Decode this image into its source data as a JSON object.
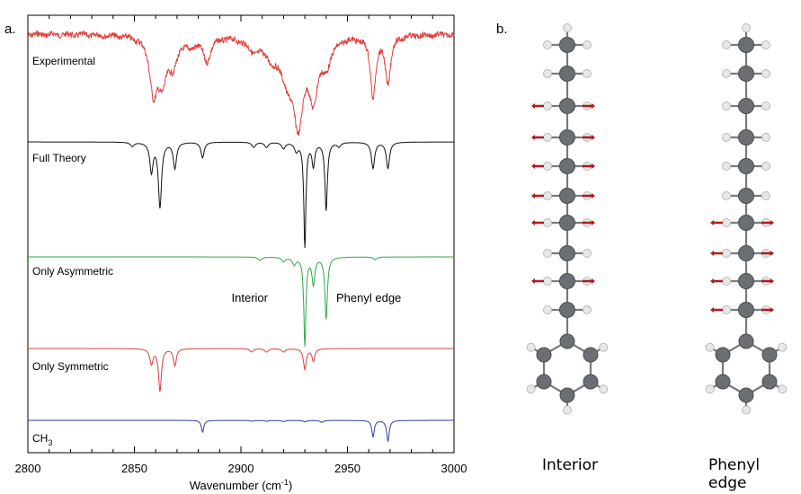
{
  "panel_a_label": "a.",
  "panel_b_label": "b.",
  "chart_data": {
    "type": "line",
    "title": "",
    "xlabel": "Wavenumber (cm⁻¹)",
    "xlabel_parts": {
      "text": "Wavenumber (cm",
      "sup": "-1",
      "close": ")"
    },
    "ylabel": "",
    "xlim": [
      2800,
      3000
    ],
    "xticks": [
      2800,
      2850,
      2900,
      2950,
      3000
    ],
    "grid": false,
    "legend": "none",
    "traces": [
      {
        "label": "Experimental",
        "color": "#e0403c",
        "noise": true,
        "peaks": [
          [
            2859,
            0.55,
            2.2
          ],
          [
            2863,
            0.4,
            2.4
          ],
          [
            2868,
            0.28,
            2.4
          ],
          [
            2876,
            0.08,
            3
          ],
          [
            2884,
            0.25,
            2.2
          ],
          [
            2906,
            0.12,
            4
          ],
          [
            2915,
            0.18,
            4
          ],
          [
            2922,
            0.35,
            3.5
          ],
          [
            2927,
            0.8,
            2.8
          ],
          [
            2934,
            0.55,
            2.5
          ],
          [
            2940,
            0.25,
            3
          ],
          [
            2962,
            0.62,
            1.5
          ],
          [
            2969,
            0.48,
            1.5
          ]
        ]
      },
      {
        "label": "Full Theory",
        "color": "#111111",
        "noise": false,
        "peaks": [
          [
            2849,
            0.04,
            1
          ],
          [
            2858,
            0.28,
            0.9
          ],
          [
            2862,
            0.62,
            0.9
          ],
          [
            2869,
            0.25,
            0.9
          ],
          [
            2882,
            0.15,
            0.9
          ],
          [
            2906,
            0.05,
            1
          ],
          [
            2912,
            0.05,
            1
          ],
          [
            2920,
            0.06,
            1
          ],
          [
            2926,
            0.08,
            1
          ],
          [
            2930,
            1.0,
            0.6
          ],
          [
            2934,
            0.22,
            0.8
          ],
          [
            2940,
            0.65,
            0.7
          ],
          [
            2946,
            0.04,
            1
          ],
          [
            2962,
            0.25,
            0.9
          ],
          [
            2969,
            0.25,
            0.9
          ]
        ]
      },
      {
        "label": "Only Asymmetric",
        "color": "#2ea84a",
        "noise": false,
        "peaks": [
          [
            2909,
            0.04,
            1
          ],
          [
            2920,
            0.05,
            1
          ],
          [
            2925,
            0.08,
            1
          ],
          [
            2930,
            1.0,
            0.6
          ],
          [
            2934,
            0.3,
            0.8
          ],
          [
            2940,
            0.7,
            0.7
          ],
          [
            2963,
            0.03,
            1
          ]
        ]
      },
      {
        "label": "Only Symmetric",
        "color": "#d8403a",
        "noise": false,
        "peaks": [
          [
            2858,
            0.22,
            0.9
          ],
          [
            2862,
            0.62,
            0.8
          ],
          [
            2869,
            0.25,
            0.8
          ],
          [
            2905,
            0.05,
            1
          ],
          [
            2912,
            0.05,
            1
          ],
          [
            2920,
            0.05,
            1
          ],
          [
            2930,
            0.3,
            0.8
          ],
          [
            2934,
            0.18,
            0.8
          ]
        ]
      },
      {
        "label": "CH3",
        "label_parts": {
          "text": "CH",
          "sub": "3"
        },
        "color": "#2b3f9a",
        "noise": false,
        "peaks": [
          [
            2882,
            0.5,
            0.7
          ],
          [
            2905,
            0.04,
            1
          ],
          [
            2912,
            0.04,
            1
          ],
          [
            2920,
            0.05,
            1
          ],
          [
            2930,
            0.06,
            1
          ],
          [
            2938,
            0.08,
            1
          ],
          [
            2962,
            0.7,
            0.7
          ],
          [
            2969,
            0.9,
            0.7
          ]
        ]
      }
    ],
    "annotations": [
      "Interior",
      "Phenyl edge"
    ]
  },
  "molecule_panels": [
    {
      "caption": "Interior",
      "arrows_on_rings": [
        2,
        3,
        4,
        5,
        6,
        8
      ]
    },
    {
      "caption": "Phenyl edge",
      "arrows_on_rings": [
        6,
        7,
        8,
        9
      ]
    }
  ]
}
